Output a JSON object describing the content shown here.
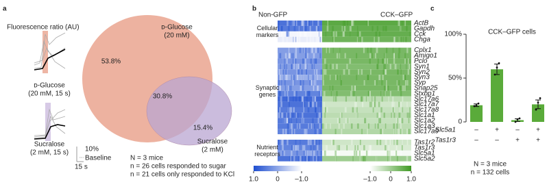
{
  "chart_data": [
    {
      "type": "venn",
      "panel": "a",
      "trace_title": "Fluorescence ratio (AU)",
      "traces": [
        {
          "name": "ᴅ-Glucose",
          "condition": "(20 mM, 15 s)",
          "color": "#eaa48e",
          "label_color": "#d4573b"
        },
        {
          "name": "Sucralose",
          "condition": "(2 mM, 15 s)",
          "color": "#cdbde0",
          "label_color": "#8a6cb0"
        }
      ],
      "scale_bar": {
        "y_label": "10%",
        "baseline": "Baseline",
        "x_label": "15 s"
      },
      "sets": [
        {
          "name": "ᴅ-Glucose",
          "concentration": "(20 mM)",
          "color": "#eaa58f",
          "label_color": "#d4573b"
        },
        {
          "name": "Sucralose",
          "concentration": "(2 mM)",
          "color": "#b9a6d2",
          "label_color": "#8a6cb0"
        }
      ],
      "values": [
        53.8,
        30.8,
        15.4
      ],
      "value_labels": [
        "53.8%",
        "30.8%",
        "15.4%"
      ],
      "notes": [
        "N = 3 mice",
        "n = 26 cells responded to sugar",
        "n = 21 cells only responded to KCl"
      ]
    },
    {
      "type": "heatmap",
      "panel": "b",
      "columns": [
        {
          "name": "Non-GFP",
          "color": "#1f4fd0"
        },
        {
          "name": "CCK–GFP",
          "color": "#3f9a23"
        }
      ],
      "row_groups": [
        {
          "name": "Cellular markers",
          "genes": [
            {
              "name": "ActB",
              "values": [
                0.6,
                0.7
              ]
            },
            {
              "name": "Gapdh",
              "values": [
                0.5,
                0.6
              ]
            },
            {
              "name": "Cck",
              "values": [
                -0.9,
                0.6
              ]
            },
            {
              "name": "Chga",
              "values": [
                -0.8,
                0.5
              ]
            }
          ]
        },
        {
          "name": "Synaptic genes",
          "genes": [
            {
              "name": "Cplx1",
              "values": [
                0.1,
                0.4
              ]
            },
            {
              "name": "Amigo1",
              "values": [
                0.1,
                0.4
              ]
            },
            {
              "name": "Pclo",
              "values": [
                0.2,
                0.4
              ]
            },
            {
              "name": "Syn1",
              "values": [
                0.1,
                0.3
              ]
            },
            {
              "name": "Syn2",
              "values": [
                0.2,
                0.4
              ]
            },
            {
              "name": "Syn3",
              "values": [
                -0.1,
                0.4
              ]
            },
            {
              "name": "Syp",
              "values": [
                0.2,
                0.4
              ]
            },
            {
              "name": "Snap25",
              "values": [
                0.1,
                0.4
              ]
            },
            {
              "name": "Stxbp1",
              "values": [
                0.4,
                0.3
              ]
            },
            {
              "name": "Slc17a6",
              "values": [
                0.7,
                -0.3
              ]
            },
            {
              "name": "Slc17a7",
              "values": [
                0.6,
                -0.5
              ]
            },
            {
              "name": "Slc17a8",
              "values": [
                0.5,
                -0.4
              ]
            },
            {
              "name": "Slc1a1",
              "values": [
                0.6,
                -0.3
              ]
            },
            {
              "name": "Slc1a2",
              "values": [
                0.5,
                -0.4
              ]
            },
            {
              "name": "Slc1a3",
              "values": [
                0.5,
                -0.3
              ]
            },
            {
              "name": "Slc17a9",
              "values": [
                0.4,
                -0.2
              ]
            }
          ]
        },
        {
          "name": "Nutrient receptors",
          "genes": [
            {
              "name": "Tas1r2",
              "values": [
                0.5,
                -0.5
              ]
            },
            {
              "name": "Tas1r3",
              "values": [
                0.4,
                -0.6
              ]
            },
            {
              "name": "Slc5a1",
              "values": [
                0.2,
                -0.9
              ]
            },
            {
              "name": "Slc5a2",
              "values": [
                0.6,
                0
              ]
            }
          ]
        }
      ],
      "colorbars": [
        {
          "lim": [
            1,
            -1
          ],
          "ticks": [
            {
              "value": 1,
              "label": "1.0"
            },
            0,
            {
              "value": -1,
              "label": "–1.0"
            }
          ]
        },
        {
          "lim": [
            -1,
            1
          ],
          "ticks": [
            {
              "value": -1,
              "label": "–1.0"
            },
            0,
            {
              "value": 1,
              "label": "1.0"
            }
          ]
        }
      ]
    },
    {
      "type": "bar",
      "panel": "c",
      "title": "CCK–GFP cells",
      "values": [
        19,
        60,
        2,
        20
      ],
      "errors": [
        1.5,
        6,
        1.5,
        5
      ],
      "points": [
        [
          18,
          19,
          21
        ],
        [
          54,
          62,
          67
        ],
        [
          0,
          3,
          4
        ],
        [
          14,
          22,
          27
        ]
      ],
      "color": "#5aab3a",
      "ylim": [
        0,
        100
      ],
      "yticks": [
        0,
        {
          "value": 50,
          "label": "50%"
        },
        {
          "value": 100,
          "label": "100%"
        }
      ],
      "conditions": [
        {
          "name": "Slc5a1",
          "color": "#d98a2a",
          "signs": [
            "–",
            "+",
            "–",
            "+"
          ]
        },
        {
          "name": "Tas1r3",
          "color": "#8a6cb0",
          "signs": [
            "–",
            "–",
            "+",
            "+"
          ]
        }
      ],
      "notes": [
        "N = 3 mice",
        "n = 132 cells"
      ]
    }
  ]
}
